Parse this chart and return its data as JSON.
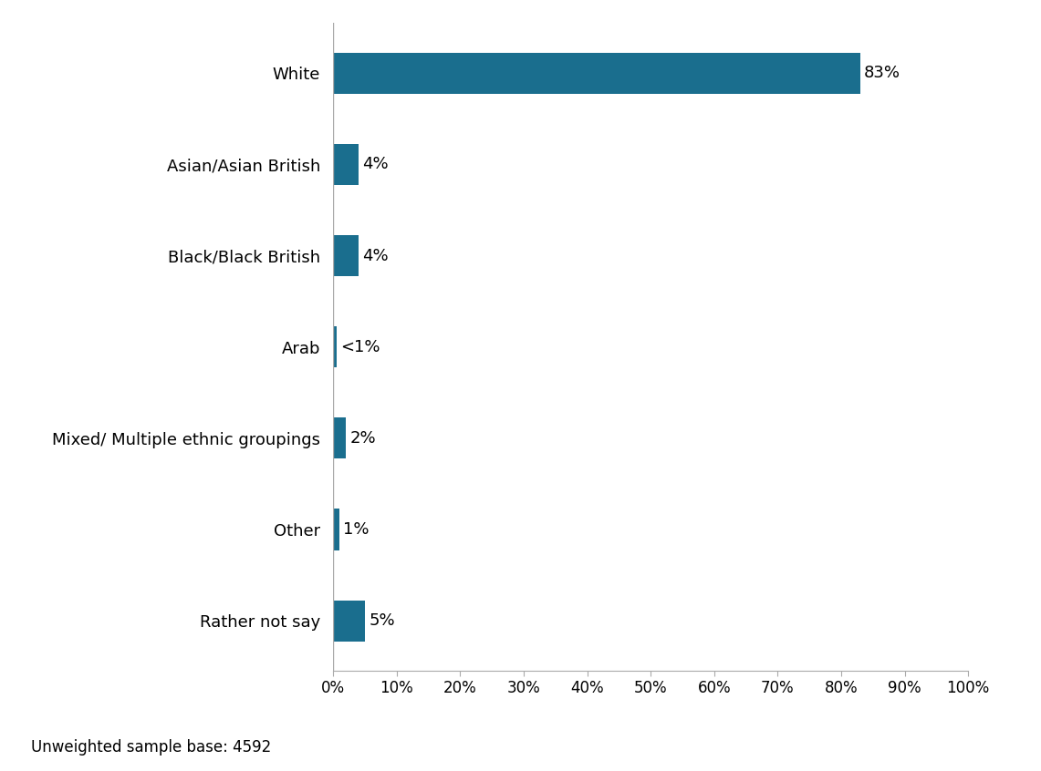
{
  "categories": [
    "White",
    "Asian/Asian British",
    "Black/Black British",
    "Arab",
    "Mixed/ Multiple ethnic groupings",
    "Other",
    "Rather not say"
  ],
  "values": [
    83,
    4,
    4,
    0.5,
    2,
    1,
    5
  ],
  "labels": [
    "83%",
    "4%",
    "4%",
    "<1%",
    "2%",
    "1%",
    "5%"
  ],
  "bar_color": "#1a6e8e",
  "background_color": "#ffffff",
  "xlim": [
    0,
    100
  ],
  "xticks": [
    0,
    10,
    20,
    30,
    40,
    50,
    60,
    70,
    80,
    90,
    100
  ],
  "xticklabels": [
    "0%",
    "10%",
    "20%",
    "30%",
    "40%",
    "50%",
    "60%",
    "70%",
    "80%",
    "90%",
    "100%"
  ],
  "footnote": "Unweighted sample base: 4592",
  "label_fontsize": 13,
  "tick_fontsize": 12,
  "footnote_fontsize": 12,
  "bar_height": 0.45
}
